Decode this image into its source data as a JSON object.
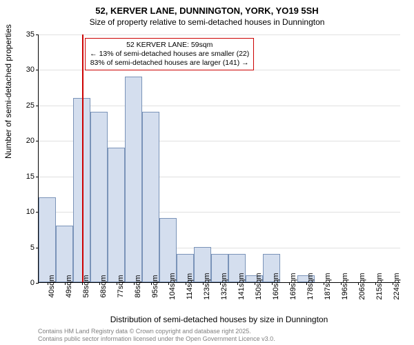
{
  "title": "52, KERVER LANE, DUNNINGTON, YORK, YO19 5SH",
  "subtitle": "Size of property relative to semi-detached houses in Dunnington",
  "xlabel": "Distribution of semi-detached houses by size in Dunnington",
  "ylabel": "Number of semi-detached properties",
  "chart": {
    "type": "histogram",
    "ylim": [
      0,
      35
    ],
    "ytick_step": 5,
    "yticks": [
      0,
      5,
      10,
      15,
      20,
      25,
      30,
      35
    ],
    "bar_color": "#d4deee",
    "bar_border_color": "#7a93b8",
    "grid_color": "#e0e0e0",
    "background_color": "#ffffff",
    "x_bin_start": 35,
    "x_bin_width": 9.5,
    "x_tick_start": 40,
    "bars": [
      {
        "label": "40sqm",
        "value": 12
      },
      {
        "label": "49sqm",
        "value": 8
      },
      {
        "label": "58sqm",
        "value": 26
      },
      {
        "label": "68sqm",
        "value": 24
      },
      {
        "label": "77sqm",
        "value": 19
      },
      {
        "label": "86sqm",
        "value": 29
      },
      {
        "label": "95sqm",
        "value": 24
      },
      {
        "label": "104sqm",
        "value": 9
      },
      {
        "label": "114sqm",
        "value": 4
      },
      {
        "label": "123sqm",
        "value": 5
      },
      {
        "label": "132sqm",
        "value": 4
      },
      {
        "label": "141sqm",
        "value": 4
      },
      {
        "label": "150sqm",
        "value": 1
      },
      {
        "label": "160sqm",
        "value": 4
      },
      {
        "label": "169sqm",
        "value": 0
      },
      {
        "label": "178sqm",
        "value": 1
      },
      {
        "label": "187sqm",
        "value": 0
      },
      {
        "label": "196sqm",
        "value": 0
      },
      {
        "label": "206sqm",
        "value": 0
      },
      {
        "label": "215sqm",
        "value": 0
      },
      {
        "label": "224sqm",
        "value": 0
      }
    ],
    "marker": {
      "value_sqm": 59,
      "color": "#cc0000"
    },
    "annotation": {
      "line1": "52 KERVER LANE: 59sqm",
      "line2": "← 13% of semi-detached houses are smaller (22)",
      "line3": "83% of semi-detached houses are larger (141) →",
      "border_color": "#cc0000"
    }
  },
  "footer": {
    "line1": "Contains HM Land Registry data © Crown copyright and database right 2025.",
    "line2": "Contains public sector information licensed under the Open Government Licence v3.0."
  }
}
